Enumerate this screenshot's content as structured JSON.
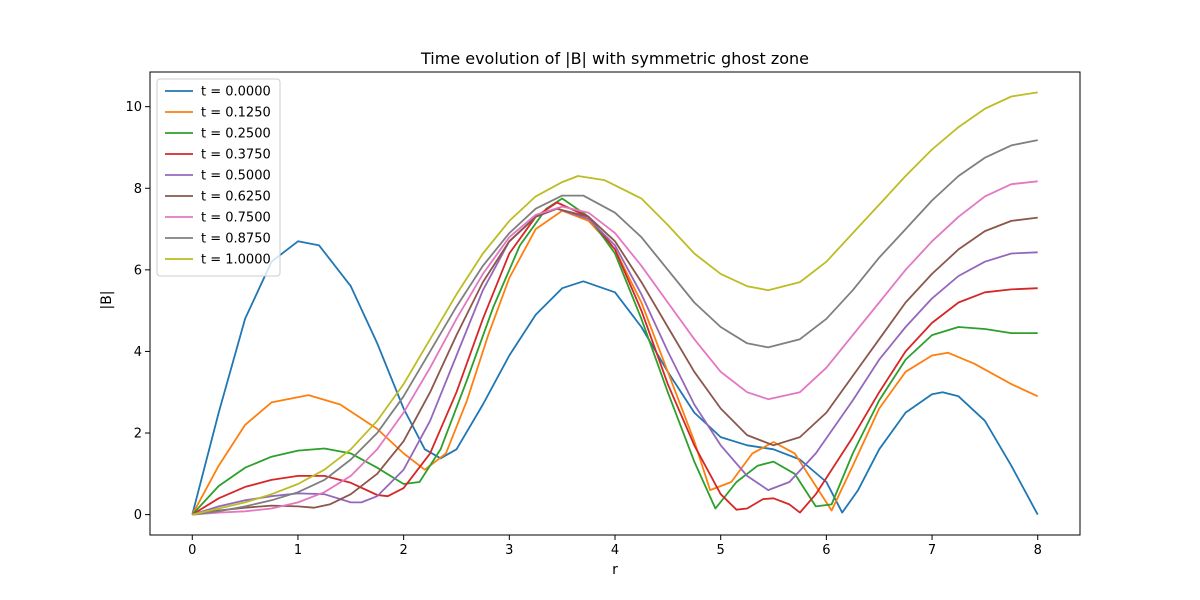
{
  "chart_data": {
    "type": "line",
    "title": "Time evolution of |B| with symmetric ghost zone",
    "xlabel": "r",
    "ylabel": "|B|",
    "xlim": [
      -0.4,
      8.4
    ],
    "ylim": [
      -0.5,
      10.85
    ],
    "xticks": [
      "0",
      "1",
      "2",
      "3",
      "4",
      "5",
      "6",
      "7",
      "8"
    ],
    "yticks": [
      "0",
      "2",
      "4",
      "6",
      "8",
      "10"
    ],
    "grid": false,
    "legend_position": "upper left",
    "series": [
      {
        "name": "t = 0.0000",
        "color": "#1f77b4",
        "points": [
          [
            0,
            0
          ],
          [
            0.25,
            2.5
          ],
          [
            0.5,
            4.8
          ],
          [
            0.75,
            6.2
          ],
          [
            1.0,
            6.7
          ],
          [
            1.2,
            6.6
          ],
          [
            1.5,
            5.6
          ],
          [
            1.75,
            4.2
          ],
          [
            2.0,
            2.6
          ],
          [
            2.2,
            1.6
          ],
          [
            2.35,
            1.38
          ],
          [
            2.5,
            1.6
          ],
          [
            2.75,
            2.7
          ],
          [
            3.0,
            3.9
          ],
          [
            3.25,
            4.9
          ],
          [
            3.5,
            5.55
          ],
          [
            3.7,
            5.72
          ],
          [
            4.0,
            5.45
          ],
          [
            4.25,
            4.6
          ],
          [
            4.5,
            3.5
          ],
          [
            4.75,
            2.5
          ],
          [
            5.0,
            1.9
          ],
          [
            5.25,
            1.7
          ],
          [
            5.5,
            1.6
          ],
          [
            5.75,
            1.35
          ],
          [
            6.0,
            0.8
          ],
          [
            6.15,
            0.05
          ],
          [
            6.3,
            0.6
          ],
          [
            6.5,
            1.6
          ],
          [
            6.75,
            2.5
          ],
          [
            7.0,
            2.95
          ],
          [
            7.1,
            3.0
          ],
          [
            7.25,
            2.9
          ],
          [
            7.5,
            2.3
          ],
          [
            7.75,
            1.2
          ],
          [
            8.0,
            0
          ]
        ]
      },
      {
        "name": "t = 0.1250",
        "color": "#ff7f0e",
        "points": [
          [
            0,
            0
          ],
          [
            0.25,
            1.2
          ],
          [
            0.5,
            2.2
          ],
          [
            0.75,
            2.75
          ],
          [
            1.1,
            2.93
          ],
          [
            1.4,
            2.7
          ],
          [
            1.75,
            2.1
          ],
          [
            2.0,
            1.5
          ],
          [
            2.2,
            1.1
          ],
          [
            2.4,
            1.5
          ],
          [
            2.6,
            2.8
          ],
          [
            2.8,
            4.4
          ],
          [
            3.0,
            5.8
          ],
          [
            3.25,
            7.0
          ],
          [
            3.5,
            7.45
          ],
          [
            3.75,
            7.2
          ],
          [
            4.0,
            6.5
          ],
          [
            4.25,
            5.2
          ],
          [
            4.5,
            3.5
          ],
          [
            4.75,
            1.8
          ],
          [
            4.9,
            0.6
          ],
          [
            5.1,
            0.8
          ],
          [
            5.3,
            1.5
          ],
          [
            5.5,
            1.78
          ],
          [
            5.7,
            1.5
          ],
          [
            5.9,
            0.7
          ],
          [
            6.05,
            0.1
          ],
          [
            6.25,
            1.2
          ],
          [
            6.5,
            2.6
          ],
          [
            6.75,
            3.5
          ],
          [
            7.0,
            3.9
          ],
          [
            7.15,
            3.97
          ],
          [
            7.4,
            3.7
          ],
          [
            7.75,
            3.2
          ],
          [
            8.0,
            2.9
          ]
        ]
      },
      {
        "name": "t = 0.2500",
        "color": "#2ca02c",
        "points": [
          [
            0,
            0
          ],
          [
            0.25,
            0.7
          ],
          [
            0.5,
            1.15
          ],
          [
            0.75,
            1.42
          ],
          [
            1.0,
            1.57
          ],
          [
            1.25,
            1.62
          ],
          [
            1.5,
            1.5
          ],
          [
            1.75,
            1.15
          ],
          [
            2.0,
            0.75
          ],
          [
            2.15,
            0.8
          ],
          [
            2.35,
            1.6
          ],
          [
            2.6,
            3.3
          ],
          [
            2.85,
            5.1
          ],
          [
            3.1,
            6.6
          ],
          [
            3.35,
            7.5
          ],
          [
            3.5,
            7.75
          ],
          [
            3.75,
            7.3
          ],
          [
            4.0,
            6.4
          ],
          [
            4.25,
            4.8
          ],
          [
            4.5,
            3.0
          ],
          [
            4.75,
            1.3
          ],
          [
            4.95,
            0.15
          ],
          [
            5.15,
            0.8
          ],
          [
            5.35,
            1.2
          ],
          [
            5.5,
            1.3
          ],
          [
            5.7,
            1.0
          ],
          [
            5.9,
            0.2
          ],
          [
            6.05,
            0.25
          ],
          [
            6.25,
            1.5
          ],
          [
            6.5,
            2.8
          ],
          [
            6.75,
            3.8
          ],
          [
            7.0,
            4.4
          ],
          [
            7.25,
            4.6
          ],
          [
            7.5,
            4.55
          ],
          [
            7.75,
            4.45
          ],
          [
            8.0,
            4.45
          ]
        ]
      },
      {
        "name": "t = 0.3750",
        "color": "#d62728",
        "points": [
          [
            0,
            0
          ],
          [
            0.25,
            0.4
          ],
          [
            0.5,
            0.68
          ],
          [
            0.75,
            0.85
          ],
          [
            1.0,
            0.95
          ],
          [
            1.25,
            0.95
          ],
          [
            1.5,
            0.78
          ],
          [
            1.75,
            0.48
          ],
          [
            1.85,
            0.45
          ],
          [
            2.0,
            0.65
          ],
          [
            2.25,
            1.5
          ],
          [
            2.5,
            3.0
          ],
          [
            2.75,
            4.8
          ],
          [
            3.0,
            6.4
          ],
          [
            3.25,
            7.3
          ],
          [
            3.45,
            7.65
          ],
          [
            3.75,
            7.3
          ],
          [
            4.0,
            6.5
          ],
          [
            4.25,
            5.0
          ],
          [
            4.5,
            3.2
          ],
          [
            4.75,
            1.7
          ],
          [
            5.0,
            0.5
          ],
          [
            5.15,
            0.12
          ],
          [
            5.25,
            0.15
          ],
          [
            5.4,
            0.38
          ],
          [
            5.5,
            0.4
          ],
          [
            5.65,
            0.25
          ],
          [
            5.75,
            0.05
          ],
          [
            5.9,
            0.5
          ],
          [
            6.25,
            1.9
          ],
          [
            6.5,
            3.0
          ],
          [
            6.75,
            4.0
          ],
          [
            7.0,
            4.7
          ],
          [
            7.25,
            5.2
          ],
          [
            7.5,
            5.45
          ],
          [
            7.75,
            5.52
          ],
          [
            8.0,
            5.55
          ]
        ]
      },
      {
        "name": "t = 0.5000",
        "color": "#9467bd",
        "points": [
          [
            0,
            0
          ],
          [
            0.25,
            0.2
          ],
          [
            0.5,
            0.35
          ],
          [
            0.75,
            0.45
          ],
          [
            1.0,
            0.52
          ],
          [
            1.25,
            0.5
          ],
          [
            1.5,
            0.3
          ],
          [
            1.6,
            0.3
          ],
          [
            1.75,
            0.45
          ],
          [
            2.0,
            1.1
          ],
          [
            2.25,
            2.3
          ],
          [
            2.5,
            3.9
          ],
          [
            2.75,
            5.5
          ],
          [
            3.0,
            6.7
          ],
          [
            3.25,
            7.3
          ],
          [
            3.45,
            7.5
          ],
          [
            3.75,
            7.25
          ],
          [
            4.0,
            6.6
          ],
          [
            4.25,
            5.4
          ],
          [
            4.5,
            4.0
          ],
          [
            4.75,
            2.7
          ],
          [
            5.0,
            1.7
          ],
          [
            5.25,
            0.95
          ],
          [
            5.45,
            0.6
          ],
          [
            5.65,
            0.8
          ],
          [
            5.9,
            1.5
          ],
          [
            6.25,
            2.8
          ],
          [
            6.5,
            3.8
          ],
          [
            6.75,
            4.6
          ],
          [
            7.0,
            5.3
          ],
          [
            7.25,
            5.85
          ],
          [
            7.5,
            6.2
          ],
          [
            7.75,
            6.4
          ],
          [
            8.0,
            6.43
          ]
        ]
      },
      {
        "name": "t = 0.6250",
        "color": "#8c564b",
        "points": [
          [
            0,
            0
          ],
          [
            0.25,
            0.1
          ],
          [
            0.5,
            0.17
          ],
          [
            0.75,
            0.22
          ],
          [
            1.0,
            0.2
          ],
          [
            1.15,
            0.17
          ],
          [
            1.3,
            0.25
          ],
          [
            1.5,
            0.5
          ],
          [
            1.75,
            1.0
          ],
          [
            2.0,
            1.8
          ],
          [
            2.25,
            3.0
          ],
          [
            2.5,
            4.4
          ],
          [
            2.75,
            5.7
          ],
          [
            3.0,
            6.7
          ],
          [
            3.25,
            7.3
          ],
          [
            3.45,
            7.5
          ],
          [
            3.75,
            7.3
          ],
          [
            4.0,
            6.7
          ],
          [
            4.25,
            5.7
          ],
          [
            4.5,
            4.6
          ],
          [
            4.75,
            3.5
          ],
          [
            5.0,
            2.6
          ],
          [
            5.25,
            1.95
          ],
          [
            5.5,
            1.7
          ],
          [
            5.75,
            1.9
          ],
          [
            6.0,
            2.5
          ],
          [
            6.25,
            3.4
          ],
          [
            6.5,
            4.3
          ],
          [
            6.75,
            5.2
          ],
          [
            7.0,
            5.9
          ],
          [
            7.25,
            6.5
          ],
          [
            7.5,
            6.95
          ],
          [
            7.75,
            7.2
          ],
          [
            8.0,
            7.28
          ]
        ]
      },
      {
        "name": "t = 0.7500",
        "color": "#e377c2",
        "points": [
          [
            0,
            0
          ],
          [
            0.25,
            0.05
          ],
          [
            0.5,
            0.08
          ],
          [
            0.75,
            0.15
          ],
          [
            1.0,
            0.3
          ],
          [
            1.25,
            0.55
          ],
          [
            1.5,
            0.95
          ],
          [
            1.75,
            1.6
          ],
          [
            2.0,
            2.5
          ],
          [
            2.25,
            3.6
          ],
          [
            2.5,
            4.8
          ],
          [
            2.75,
            5.9
          ],
          [
            3.0,
            6.8
          ],
          [
            3.25,
            7.35
          ],
          [
            3.5,
            7.55
          ],
          [
            3.75,
            7.4
          ],
          [
            4.0,
            6.9
          ],
          [
            4.25,
            6.1
          ],
          [
            4.5,
            5.2
          ],
          [
            4.75,
            4.3
          ],
          [
            5.0,
            3.5
          ],
          [
            5.25,
            3.0
          ],
          [
            5.45,
            2.83
          ],
          [
            5.75,
            3.0
          ],
          [
            6.0,
            3.6
          ],
          [
            6.25,
            4.4
          ],
          [
            6.5,
            5.2
          ],
          [
            6.75,
            6.0
          ],
          [
            7.0,
            6.7
          ],
          [
            7.25,
            7.3
          ],
          [
            7.5,
            7.8
          ],
          [
            7.75,
            8.1
          ],
          [
            8.0,
            8.17
          ]
        ]
      },
      {
        "name": "t = 0.8750",
        "color": "#7f7f7f",
        "points": [
          [
            0,
            0
          ],
          [
            0.25,
            0.08
          ],
          [
            0.5,
            0.2
          ],
          [
            0.75,
            0.35
          ],
          [
            1.0,
            0.55
          ],
          [
            1.25,
            0.85
          ],
          [
            1.5,
            1.35
          ],
          [
            1.75,
            2.0
          ],
          [
            2.0,
            2.9
          ],
          [
            2.25,
            4.0
          ],
          [
            2.5,
            5.1
          ],
          [
            2.75,
            6.1
          ],
          [
            3.0,
            6.9
          ],
          [
            3.25,
            7.5
          ],
          [
            3.5,
            7.82
          ],
          [
            3.7,
            7.82
          ],
          [
            4.0,
            7.4
          ],
          [
            4.25,
            6.8
          ],
          [
            4.5,
            6.0
          ],
          [
            4.75,
            5.2
          ],
          [
            5.0,
            4.6
          ],
          [
            5.25,
            4.2
          ],
          [
            5.45,
            4.1
          ],
          [
            5.75,
            4.3
          ],
          [
            6.0,
            4.8
          ],
          [
            6.25,
            5.5
          ],
          [
            6.5,
            6.3
          ],
          [
            6.75,
            7.0
          ],
          [
            7.0,
            7.7
          ],
          [
            7.25,
            8.3
          ],
          [
            7.5,
            8.75
          ],
          [
            7.75,
            9.05
          ],
          [
            8.0,
            9.18
          ]
        ]
      },
      {
        "name": "t = 1.0000",
        "color": "#bcbd22",
        "points": [
          [
            0,
            0
          ],
          [
            0.25,
            0.15
          ],
          [
            0.5,
            0.3
          ],
          [
            0.75,
            0.5
          ],
          [
            1.0,
            0.75
          ],
          [
            1.25,
            1.1
          ],
          [
            1.5,
            1.6
          ],
          [
            1.75,
            2.3
          ],
          [
            2.0,
            3.2
          ],
          [
            2.25,
            4.3
          ],
          [
            2.5,
            5.4
          ],
          [
            2.75,
            6.4
          ],
          [
            3.0,
            7.2
          ],
          [
            3.25,
            7.8
          ],
          [
            3.5,
            8.15
          ],
          [
            3.65,
            8.3
          ],
          [
            3.9,
            8.2
          ],
          [
            4.25,
            7.75
          ],
          [
            4.5,
            7.1
          ],
          [
            4.75,
            6.4
          ],
          [
            5.0,
            5.9
          ],
          [
            5.25,
            5.6
          ],
          [
            5.45,
            5.5
          ],
          [
            5.75,
            5.7
          ],
          [
            6.0,
            6.2
          ],
          [
            6.25,
            6.9
          ],
          [
            6.5,
            7.6
          ],
          [
            6.75,
            8.3
          ],
          [
            7.0,
            8.95
          ],
          [
            7.25,
            9.5
          ],
          [
            7.5,
            9.95
          ],
          [
            7.75,
            10.25
          ],
          [
            8.0,
            10.35
          ]
        ]
      }
    ]
  }
}
